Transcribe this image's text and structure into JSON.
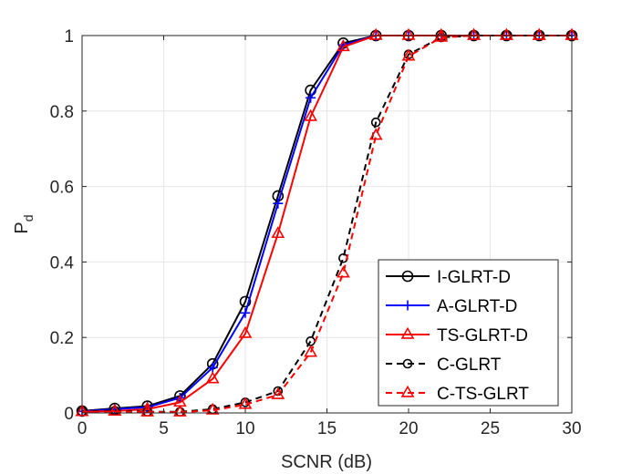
{
  "chart_data": {
    "type": "line",
    "title": "",
    "xlabel": "SCNR (dB)",
    "ylabel": "P",
    "ylabel_subscript": "d",
    "xlim": [
      0,
      30
    ],
    "ylim": [
      0,
      1
    ],
    "xticks": [
      0,
      5,
      10,
      15,
      20,
      25,
      30
    ],
    "yticks": [
      0,
      0.2,
      0.4,
      0.6,
      0.8,
      1
    ],
    "ytick_labels": [
      "0",
      "0.2",
      "0.4",
      "0.6",
      "0.8",
      "1"
    ],
    "grid": true,
    "legend_position": "lower-right",
    "x": [
      0,
      2,
      4,
      6,
      8,
      10,
      12,
      14,
      16,
      18,
      20,
      22,
      24,
      26,
      28,
      30
    ],
    "series": [
      {
        "name": "I-GLRT-D",
        "color": "#000000",
        "dash": "solid",
        "marker": "circle",
        "values": [
          0.005,
          0.012,
          0.018,
          0.045,
          0.13,
          0.295,
          0.575,
          0.855,
          0.98,
          1,
          1,
          1,
          1,
          1,
          1,
          1
        ]
      },
      {
        "name": "A-GLRT-D",
        "color": "#0000ff",
        "dash": "solid",
        "marker": "plus",
        "values": [
          0.004,
          0.01,
          0.015,
          0.04,
          0.12,
          0.265,
          0.555,
          0.835,
          0.975,
          1,
          1,
          1,
          1,
          1,
          1,
          1
        ]
      },
      {
        "name": "TS-GLRT-D",
        "color": "#ff0000",
        "dash": "solid",
        "marker": "triangle",
        "values": [
          0.003,
          0.005,
          0.01,
          0.028,
          0.09,
          0.21,
          0.475,
          0.785,
          0.97,
          1,
          1,
          1,
          1,
          1,
          1,
          1
        ]
      },
      {
        "name": "C-GLRT",
        "color": "#000000",
        "dash": "dashed",
        "marker": "circle-small",
        "values": [
          0.004,
          0.006,
          0.003,
          0.003,
          0.01,
          0.028,
          0.058,
          0.19,
          0.41,
          0.77,
          0.95,
          0.995,
          1,
          1,
          1,
          1
        ]
      },
      {
        "name": "C-TS-GLRT",
        "color": "#ff0000",
        "dash": "dashed",
        "marker": "triangle",
        "values": [
          0.003,
          0.004,
          0.002,
          0.002,
          0.007,
          0.022,
          0.048,
          0.16,
          0.37,
          0.735,
          0.945,
          0.995,
          1,
          1,
          1,
          1
        ]
      }
    ]
  }
}
